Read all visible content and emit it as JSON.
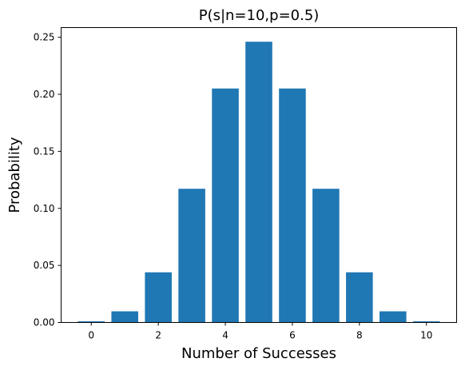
{
  "chart_data": {
    "type": "bar",
    "title": "P(s|n=10,p=0.5)",
    "xlabel": "Number of Successes",
    "ylabel": "Probability",
    "x": [
      0,
      1,
      2,
      3,
      4,
      5,
      6,
      7,
      8,
      9,
      10
    ],
    "values": [
      0.00098,
      0.00977,
      0.04395,
      0.11719,
      0.20508,
      0.24609,
      0.20508,
      0.11719,
      0.04395,
      0.00977,
      0.00098
    ],
    "xlim": [
      -0.9,
      10.9
    ],
    "ylim": [
      0,
      0.2585
    ],
    "xticks": [
      0,
      2,
      4,
      6,
      8,
      10
    ],
    "xtick_labels": [
      "0",
      "2",
      "4",
      "6",
      "8",
      "10"
    ],
    "yticks": [
      0,
      0.05,
      0.1,
      0.15,
      0.2,
      0.25
    ],
    "ytick_labels": [
      "0.00",
      "0.05",
      "0.10",
      "0.15",
      "0.20",
      "0.25"
    ],
    "bar_color": "#1f77b4",
    "grid": false,
    "legend": "none"
  }
}
